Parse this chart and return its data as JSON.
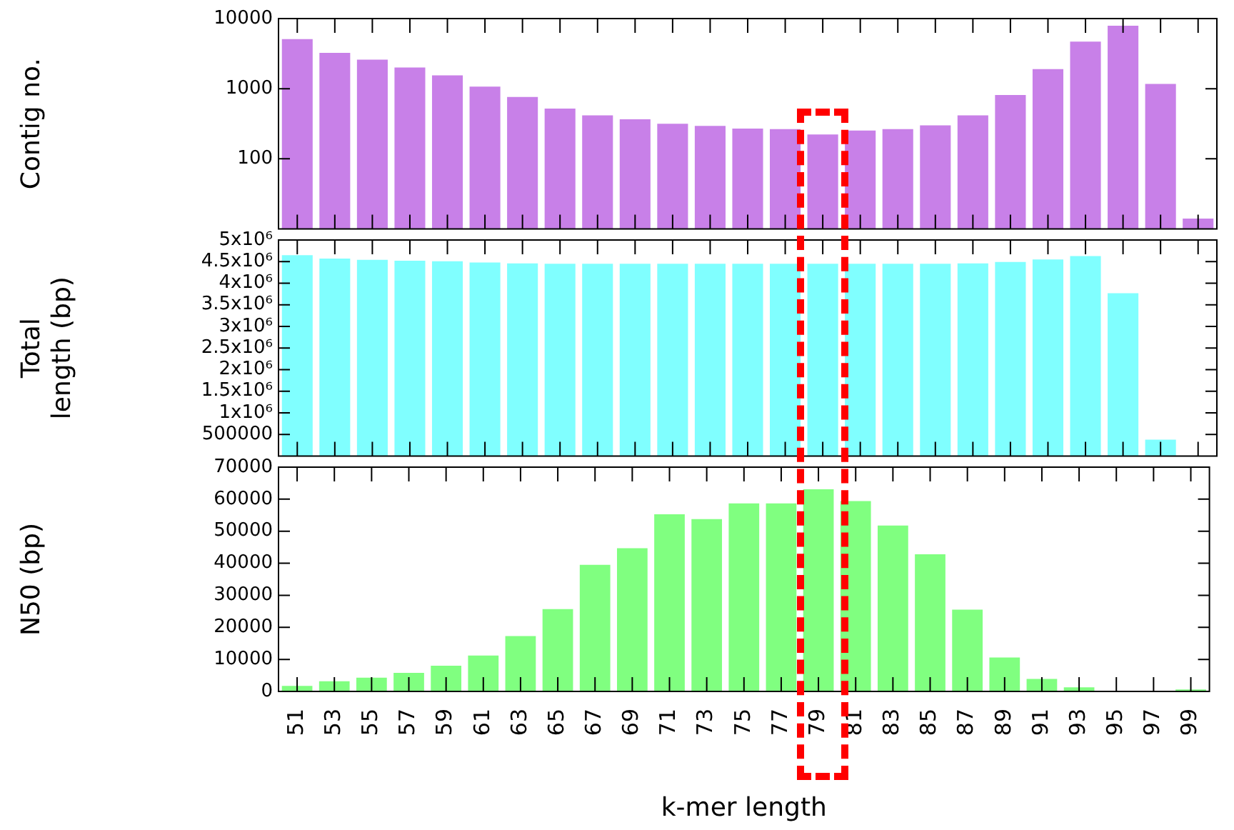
{
  "chart_data": [
    {
      "type": "bar",
      "ylabel": "Contig no.",
      "categories": [
        "51",
        "53",
        "55",
        "57",
        "59",
        "61",
        "63",
        "65",
        "67",
        "69",
        "71",
        "73",
        "75",
        "77",
        "79",
        "81",
        "83",
        "85",
        "87",
        "89",
        "91",
        "93",
        "95",
        "97",
        "99"
      ],
      "series": [
        {
          "color": "#c880e8",
          "values": [
            5100,
            3250,
            2600,
            2000,
            1550,
            1070,
            760,
            520,
            415,
            365,
            315,
            295,
            270,
            265,
            222,
            253,
            265,
            300,
            415,
            810,
            1900,
            4700,
            7900,
            1170,
            14
          ]
        }
      ],
      "log": "y",
      "ylim": [
        10,
        10000
      ],
      "yticks": [
        100,
        1000,
        10000
      ],
      "tick_labels": "y",
      "grid": false,
      "legend": false
    },
    {
      "type": "bar",
      "ylabel": "Total length (bp)",
      "categories": [
        "51",
        "53",
        "55",
        "57",
        "59",
        "61",
        "63",
        "65",
        "67",
        "69",
        "71",
        "73",
        "75",
        "77",
        "79",
        "81",
        "83",
        "85",
        "87",
        "89",
        "91",
        "93",
        "95",
        "97",
        "99"
      ],
      "series": [
        {
          "color": "#80ffff",
          "values": [
            4650000,
            4570000,
            4540000,
            4520000,
            4510000,
            4480000,
            4460000,
            4450000,
            4450000,
            4450000,
            4450000,
            4450000,
            4450000,
            4450000,
            4450000,
            4450000,
            4450000,
            4450000,
            4460000,
            4490000,
            4550000,
            4630000,
            3770000,
            380000,
            0
          ]
        }
      ],
      "ylim": [
        0,
        5000000
      ],
      "yticks": [
        {
          "value": 500000,
          "label": "500000"
        },
        {
          "value": 1000000,
          "label": "1x10⁶"
        },
        {
          "value": 1500000,
          "label": "1.5x10⁶"
        },
        {
          "value": 2000000,
          "label": "2x10⁶"
        },
        {
          "value": 2500000,
          "label": "2.5x10⁶"
        },
        {
          "value": 3000000,
          "label": "3x10⁶"
        },
        {
          "value": 3500000,
          "label": "3.5x10⁶"
        },
        {
          "value": 4000000,
          "label": "4x10⁶"
        },
        {
          "value": 4500000,
          "label": "4.5x10⁶"
        },
        {
          "value": 5000000,
          "label": "5x10⁶"
        }
      ],
      "tick_labels": "y",
      "grid": false,
      "legend": false
    },
    {
      "type": "bar",
      "ylabel": "N50 (bp)",
      "xlabel": "k-mer length",
      "categories": [
        "51",
        "53",
        "55",
        "57",
        "59",
        "61",
        "63",
        "65",
        "67",
        "69",
        "71",
        "73",
        "75",
        "77",
        "79",
        "81",
        "83",
        "85",
        "87",
        "89",
        "91",
        "93",
        "95",
        "97",
        "99"
      ],
      "series": [
        {
          "color": "#80ff80",
          "values": [
            1700,
            3200,
            4300,
            5800,
            8000,
            11200,
            17300,
            25700,
            39500,
            44700,
            55300,
            53800,
            58700,
            58700,
            63100,
            59400,
            51800,
            42800,
            25500,
            10600,
            3900,
            1300,
            null,
            null,
            600
          ]
        }
      ],
      "ylim": [
        0,
        70000
      ],
      "yticks": [
        0,
        10000,
        20000,
        30000,
        40000,
        50000,
        60000,
        70000
      ],
      "grid": false,
      "legend": false
    }
  ]
}
